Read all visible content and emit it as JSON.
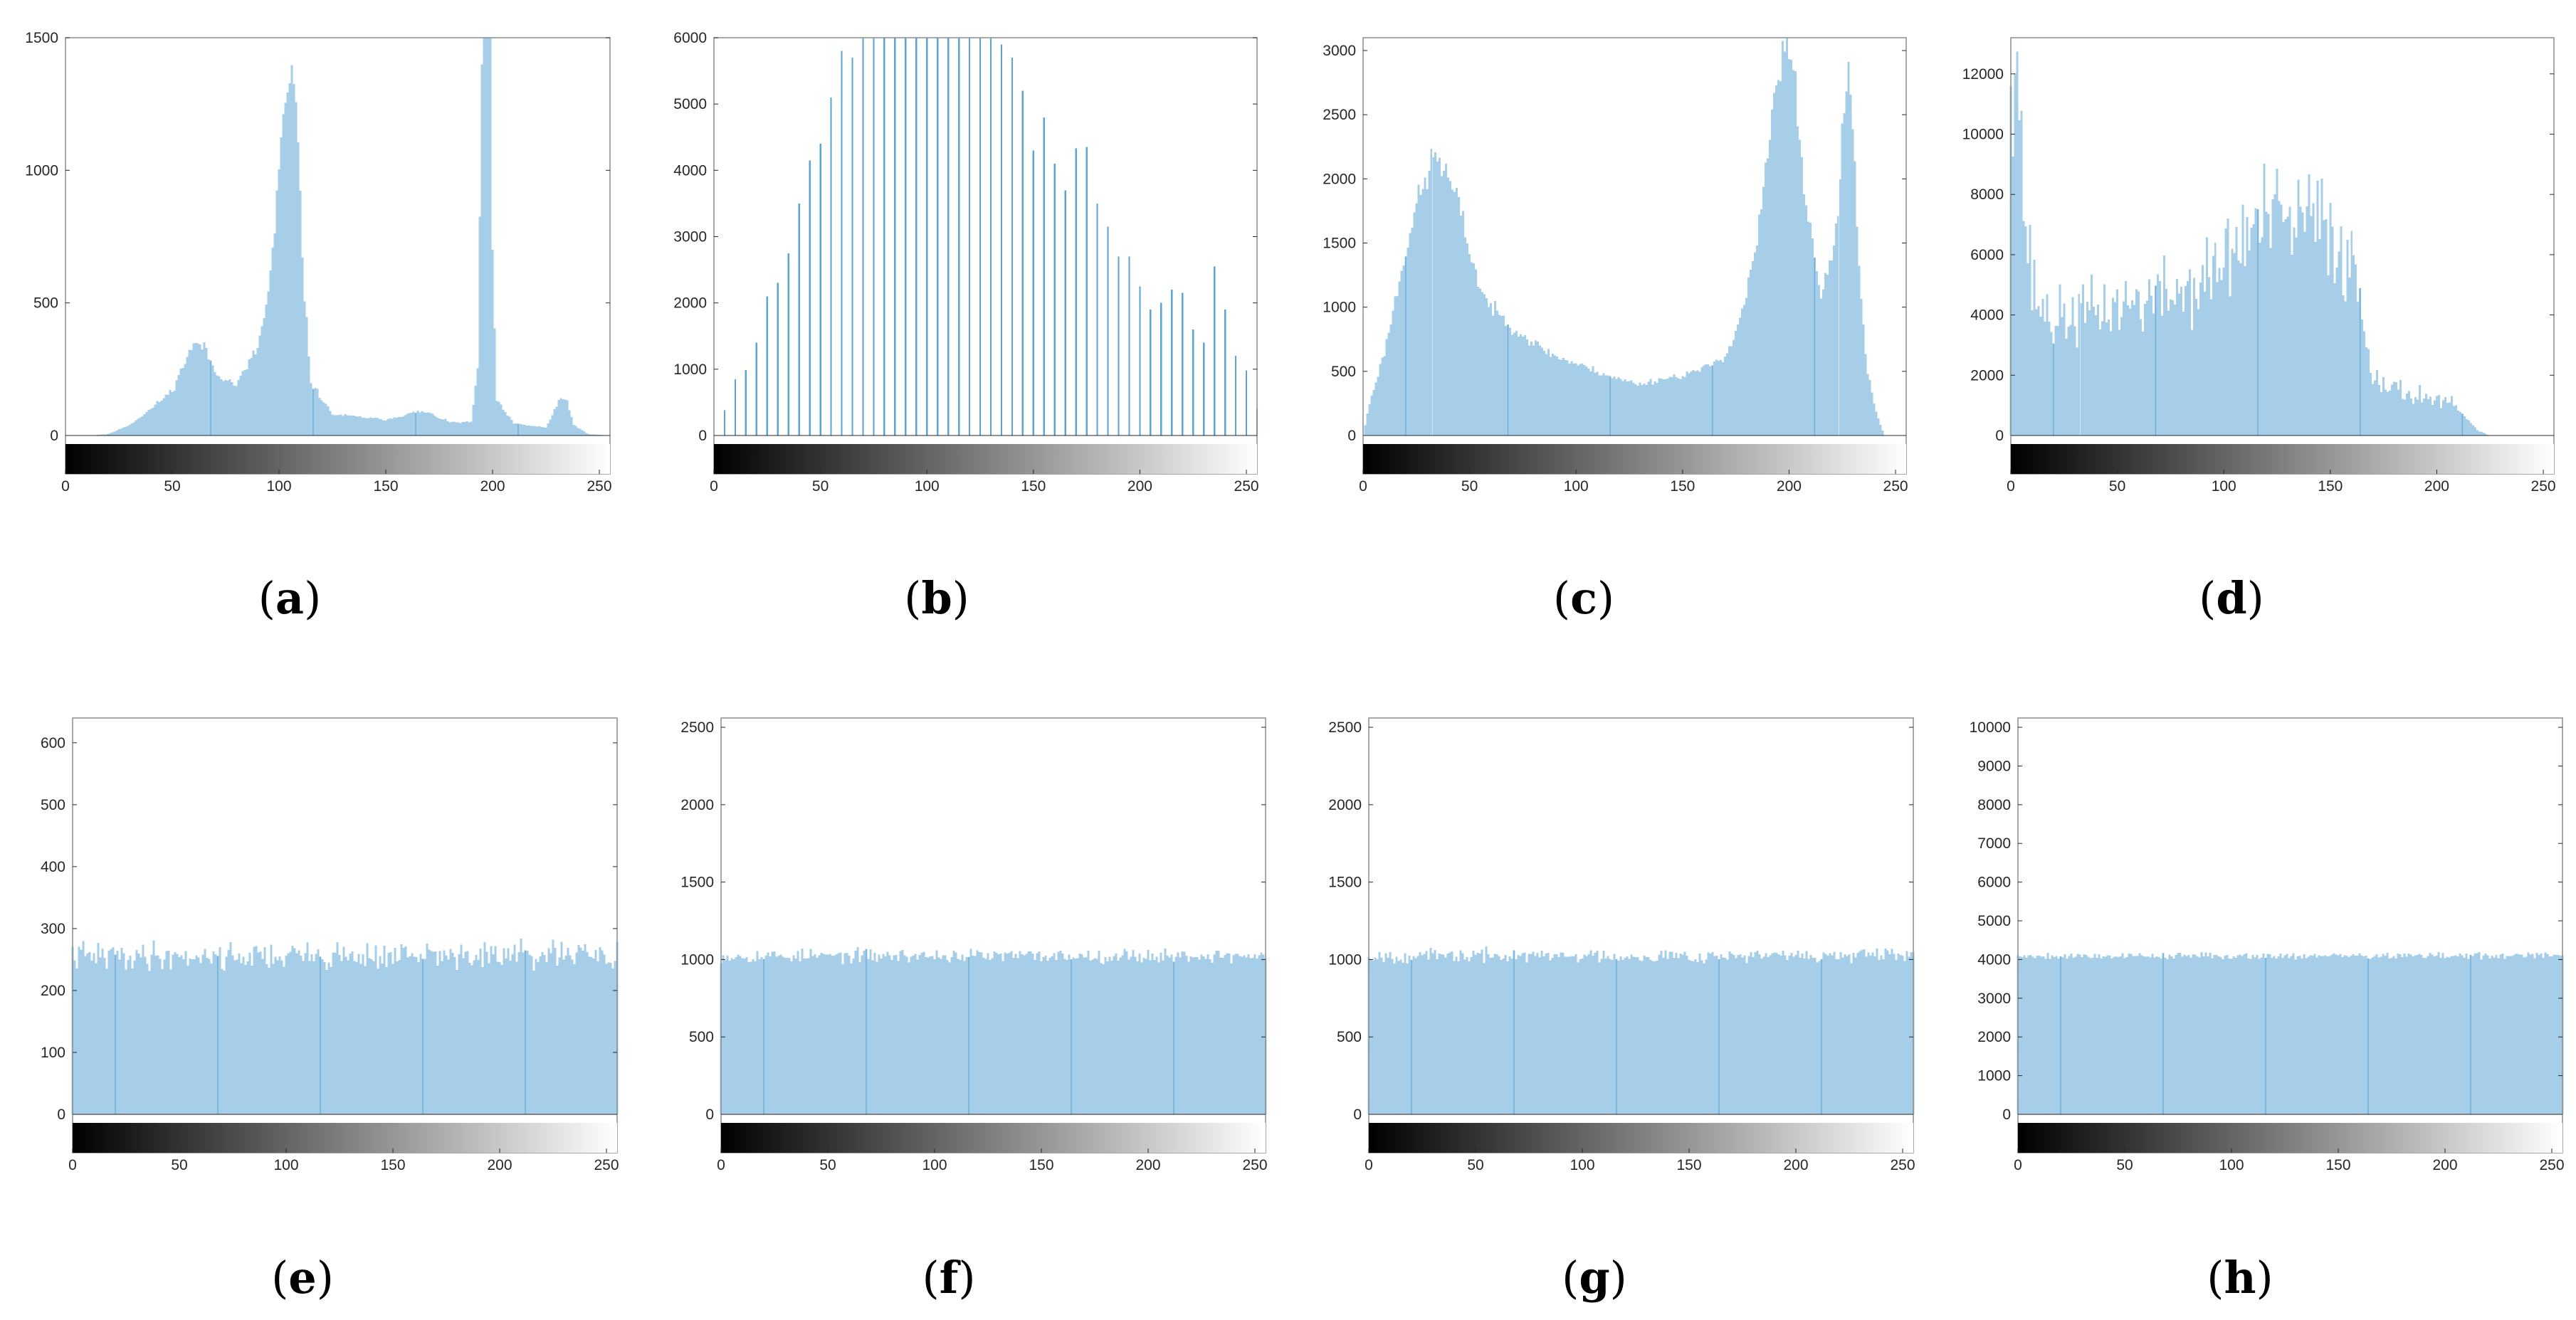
{
  "colors": {
    "bar_fill": "#a6cee8",
    "bar_edge": "#5aa5d6",
    "axis": "#262626",
    "box": "#8c8c8c",
    "background": "#ffffff"
  },
  "chart_data": [
    {
      "type": "bar",
      "panel_label": "a",
      "kind": "histogram",
      "x_bin_start": 0,
      "xlim": [
        0,
        255
      ],
      "xticks": [
        "0",
        "50",
        "100",
        "150",
        "200",
        "250"
      ],
      "ylim": [
        0,
        1500
      ],
      "yticks": [
        "0",
        "500",
        "1000",
        "1500"
      ],
      "colorbar": "grayscale",
      "anchors": [
        [
          0,
          0
        ],
        [
          10,
          0
        ],
        [
          20,
          5
        ],
        [
          30,
          40
        ],
        [
          40,
          100
        ],
        [
          50,
          170
        ],
        [
          55,
          260
        ],
        [
          58,
          320
        ],
        [
          62,
          350
        ],
        [
          66,
          320
        ],
        [
          70,
          240
        ],
        [
          80,
          190
        ],
        [
          90,
          330
        ],
        [
          95,
          530
        ],
        [
          98,
          780
        ],
        [
          100,
          1000
        ],
        [
          102,
          1150
        ],
        [
          104,
          1300
        ],
        [
          106,
          1360
        ],
        [
          108,
          1220
        ],
        [
          110,
          900
        ],
        [
          112,
          520
        ],
        [
          115,
          200
        ],
        [
          125,
          80
        ],
        [
          150,
          60
        ],
        [
          165,
          90
        ],
        [
          170,
          85
        ],
        [
          180,
          50
        ],
        [
          190,
          50
        ],
        [
          193,
          250
        ],
        [
          195,
          1400
        ],
        [
          196,
          1500
        ],
        [
          199,
          1500
        ],
        [
          200,
          700
        ],
        [
          202,
          130
        ],
        [
          210,
          45
        ],
        [
          225,
          30
        ],
        [
          232,
          140
        ],
        [
          235,
          130
        ],
        [
          238,
          40
        ],
        [
          245,
          5
        ],
        [
          255,
          0
        ]
      ],
      "peak_range": [
        194,
        200
      ],
      "noise": 0.05,
      "seed": 11,
      "bar_width": 1
    },
    {
      "type": "bar",
      "panel_label": "b",
      "kind": "sparse-histogram",
      "x_bin_start": 0,
      "xlim": [
        0,
        255
      ],
      "xticks": [
        "0",
        "50",
        "100",
        "150",
        "200",
        "250"
      ],
      "ylim": [
        0,
        6000
      ],
      "yticks": [
        "0",
        "1000",
        "2000",
        "3000",
        "4000",
        "5000",
        "6000"
      ],
      "colorbar": "grayscale",
      "spikes": [
        [
          5,
          380
        ],
        [
          10,
          850
        ],
        [
          15,
          990
        ],
        [
          20,
          1400
        ],
        [
          25,
          2100
        ],
        [
          30,
          2300
        ],
        [
          35,
          2750
        ],
        [
          40,
          3500
        ],
        [
          45,
          4150
        ],
        [
          50,
          4400
        ],
        [
          55,
          5100
        ],
        [
          60,
          5800
        ],
        [
          65,
          5700
        ],
        [
          70,
          6000
        ],
        [
          75,
          6000
        ],
        [
          80,
          6000
        ],
        [
          85,
          6000
        ],
        [
          90,
          6000
        ],
        [
          95,
          6000
        ],
        [
          100,
          6000
        ],
        [
          105,
          6000
        ],
        [
          110,
          6000
        ],
        [
          115,
          6000
        ],
        [
          120,
          6000
        ],
        [
          125,
          6000
        ],
        [
          130,
          6000
        ],
        [
          135,
          5900
        ],
        [
          140,
          5700
        ],
        [
          145,
          5200
        ],
        [
          150,
          4300
        ],
        [
          155,
          4800
        ],
        [
          160,
          4100
        ],
        [
          165,
          3700
        ],
        [
          170,
          4330
        ],
        [
          175,
          4350
        ],
        [
          180,
          3500
        ],
        [
          185,
          3150
        ],
        [
          190,
          2700
        ],
        [
          195,
          2700
        ],
        [
          200,
          2250
        ],
        [
          205,
          1900
        ],
        [
          210,
          2000
        ],
        [
          215,
          2200
        ],
        [
          220,
          2150
        ],
        [
          225,
          1600
        ],
        [
          230,
          1400
        ],
        [
          235,
          2550
        ],
        [
          240,
          1900
        ],
        [
          245,
          1200
        ],
        [
          250,
          980
        ],
        [
          255,
          400
        ]
      ],
      "bar_width": 1.4
    },
    {
      "type": "bar",
      "panel_label": "c",
      "kind": "histogram",
      "x_bin_start": 0,
      "xlim": [
        0,
        255
      ],
      "xticks": [
        "0",
        "50",
        "100",
        "150",
        "200",
        "250"
      ],
      "ylim": [
        0,
        3100
      ],
      "yticks": [
        "0",
        "500",
        "1000",
        "1500",
        "2000",
        "2500",
        "3000"
      ],
      "colorbar": "grayscale",
      "anchors": [
        [
          0,
          0
        ],
        [
          3,
          250
        ],
        [
          10,
          650
        ],
        [
          20,
          1450
        ],
        [
          25,
          1800
        ],
        [
          30,
          2000
        ],
        [
          33,
          2200
        ],
        [
          36,
          2150
        ],
        [
          40,
          2000
        ],
        [
          45,
          1800
        ],
        [
          50,
          1450
        ],
        [
          55,
          1150
        ],
        [
          60,
          1000
        ],
        [
          70,
          850
        ],
        [
          80,
          720
        ],
        [
          90,
          620
        ],
        [
          100,
          560
        ],
        [
          110,
          500
        ],
        [
          120,
          440
        ],
        [
          130,
          400
        ],
        [
          135,
          420
        ],
        [
          140,
          440
        ],
        [
          150,
          470
        ],
        [
          160,
          520
        ],
        [
          170,
          620
        ],
        [
          175,
          800
        ],
        [
          180,
          1100
        ],
        [
          185,
          1500
        ],
        [
          190,
          2200
        ],
        [
          194,
          2700
        ],
        [
          197,
          2950
        ],
        [
          200,
          3000
        ],
        [
          203,
          2700
        ],
        [
          206,
          2100
        ],
        [
          210,
          1600
        ],
        [
          215,
          1100
        ],
        [
          220,
          1350
        ],
        [
          223,
          1800
        ],
        [
          226,
          2500
        ],
        [
          228,
          2850
        ],
        [
          230,
          2500
        ],
        [
          233,
          1300
        ],
        [
          236,
          600
        ],
        [
          240,
          250
        ],
        [
          243,
          80
        ],
        [
          245,
          0
        ],
        [
          255,
          0
        ]
      ],
      "noise": 0.04,
      "seed": 23,
      "bar_width": 1
    },
    {
      "type": "bar",
      "panel_label": "d",
      "kind": "histogram",
      "x_bin_start": 0,
      "xlim": [
        0,
        255
      ],
      "xticks": [
        "0",
        "50",
        "100",
        "150",
        "200",
        "250"
      ],
      "ylim": [
        0,
        13200
      ],
      "yticks": [
        "0",
        "2000",
        "4000",
        "6000",
        "8000",
        "10000",
        "12000"
      ],
      "colorbar": "grayscale",
      "anchors": [
        [
          0,
          13200
        ],
        [
          3,
          13200
        ],
        [
          4,
          11000
        ],
        [
          5,
          9500
        ],
        [
          7,
          7000
        ],
        [
          10,
          5000
        ],
        [
          15,
          4200
        ],
        [
          20,
          3800
        ],
        [
          30,
          4000
        ],
        [
          50,
          4300
        ],
        [
          70,
          4600
        ],
        [
          90,
          5000
        ],
        [
          100,
          5800
        ],
        [
          110,
          6600
        ],
        [
          120,
          7200
        ],
        [
          130,
          7000
        ],
        [
          140,
          7200
        ],
        [
          150,
          6800
        ],
        [
          160,
          5600
        ],
        [
          163,
          5200
        ],
        [
          166,
          3500
        ],
        [
          170,
          2200
        ],
        [
          180,
          1500
        ],
        [
          195,
          1300
        ],
        [
          210,
          900
        ],
        [
          215,
          400
        ],
        [
          220,
          150
        ],
        [
          225,
          0
        ],
        [
          255,
          0
        ]
      ],
      "noise": 0.18,
      "seed": 37,
      "bar_width": 1
    },
    {
      "type": "bar",
      "panel_label": "e",
      "kind": "histogram",
      "x_bin_start": 0,
      "xlim": [
        0,
        255
      ],
      "xticks": [
        "0",
        "50",
        "100",
        "150",
        "200",
        "250"
      ],
      "ylim": [
        0,
        640
      ],
      "yticks": [
        "0",
        "100",
        "200",
        "300",
        "400",
        "500",
        "600"
      ],
      "colorbar": "grayscale",
      "anchors": [
        [
          0,
          256
        ],
        [
          255,
          256
        ]
      ],
      "noise": 0.06,
      "seed": 41,
      "bar_width": 1
    },
    {
      "type": "bar",
      "panel_label": "f",
      "kind": "histogram",
      "x_bin_start": 0,
      "xlim": [
        0,
        255
      ],
      "xticks": [
        "0",
        "50",
        "100",
        "150",
        "200",
        "250"
      ],
      "ylim": [
        0,
        2560
      ],
      "yticks": [
        "0",
        "500",
        "1000",
        "1500",
        "2000",
        "2500"
      ],
      "colorbar": "grayscale",
      "anchors": [
        [
          0,
          1024
        ],
        [
          255,
          1024
        ]
      ],
      "noise": 0.03,
      "seed": 53,
      "bar_width": 1
    },
    {
      "type": "bar",
      "panel_label": "g",
      "kind": "histogram",
      "x_bin_start": 0,
      "xlim": [
        0,
        255
      ],
      "xticks": [
        "0",
        "50",
        "100",
        "150",
        "200",
        "250"
      ],
      "ylim": [
        0,
        2560
      ],
      "yticks": [
        "0",
        "500",
        "1000",
        "1500",
        "2000",
        "2500"
      ],
      "colorbar": "grayscale",
      "anchors": [
        [
          0,
          1024
        ],
        [
          255,
          1024
        ]
      ],
      "noise": 0.03,
      "seed": 67,
      "bar_width": 1
    },
    {
      "type": "bar",
      "panel_label": "h",
      "kind": "histogram",
      "x_bin_start": 0,
      "xlim": [
        0,
        255
      ],
      "xticks": [
        "0",
        "50",
        "100",
        "150",
        "200",
        "250"
      ],
      "ylim": [
        0,
        10240
      ],
      "yticks": [
        "0",
        "1000",
        "2000",
        "3000",
        "4000",
        "5000",
        "6000",
        "7000",
        "8000",
        "9000",
        "10000"
      ],
      "colorbar": "grayscale",
      "anchors": [
        [
          0,
          4096
        ],
        [
          255,
          4096
        ]
      ],
      "noise": 0.015,
      "seed": 79,
      "bar_width": 1
    }
  ]
}
